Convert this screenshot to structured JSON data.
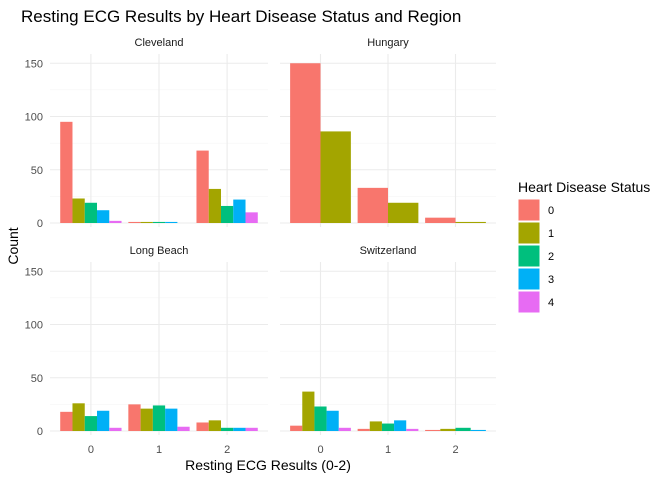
{
  "chart_data": {
    "type": "bar",
    "title": "Resting ECG Results by Heart Disease Status and Region",
    "xlabel": "Resting ECG Results (0-2)",
    "ylabel": "Count",
    "ylim": [
      0,
      160
    ],
    "yticks": [
      0,
      50,
      100,
      150
    ],
    "categories": [
      "0",
      "1",
      "2"
    ],
    "grid": true,
    "legend": {
      "title": "Heart Disease Status",
      "position": "right",
      "entries": [
        "0",
        "1",
        "2",
        "3",
        "4"
      ]
    },
    "colors": [
      "#F8766D",
      "#A3A500",
      "#00BF7D",
      "#00B0F6",
      "#E76BF3"
    ],
    "facets": [
      {
        "name": "Cleveland",
        "bars": [
          {
            "category": "0",
            "values": [
              95,
              23,
              19,
              12,
              2
            ]
          },
          {
            "category": "1",
            "values": [
              1,
              1,
              1,
              1,
              0
            ]
          },
          {
            "category": "2",
            "values": [
              68,
              32,
              16,
              22,
              10
            ]
          }
        ]
      },
      {
        "name": "Hungary",
        "bars": [
          {
            "category": "0",
            "values": [
              150,
              86
            ]
          },
          {
            "category": "1",
            "values": [
              33,
              19
            ]
          },
          {
            "category": "2",
            "values": [
              5,
              1
            ]
          }
        ]
      },
      {
        "name": "Long Beach",
        "bars": [
          {
            "category": "0",
            "values": [
              18,
              26,
              14,
              19,
              3
            ]
          },
          {
            "category": "1",
            "values": [
              25,
              21,
              24,
              21,
              4
            ]
          },
          {
            "category": "2",
            "values": [
              8,
              10,
              3,
              3,
              3
            ]
          }
        ]
      },
      {
        "name": "Switzerland",
        "bars": [
          {
            "category": "0",
            "values": [
              5,
              37,
              23,
              19,
              3
            ]
          },
          {
            "category": "1",
            "values": [
              2,
              9,
              7,
              10,
              2
            ]
          },
          {
            "category": "2",
            "values": [
              1,
              2,
              3,
              1
            ]
          }
        ]
      }
    ]
  }
}
